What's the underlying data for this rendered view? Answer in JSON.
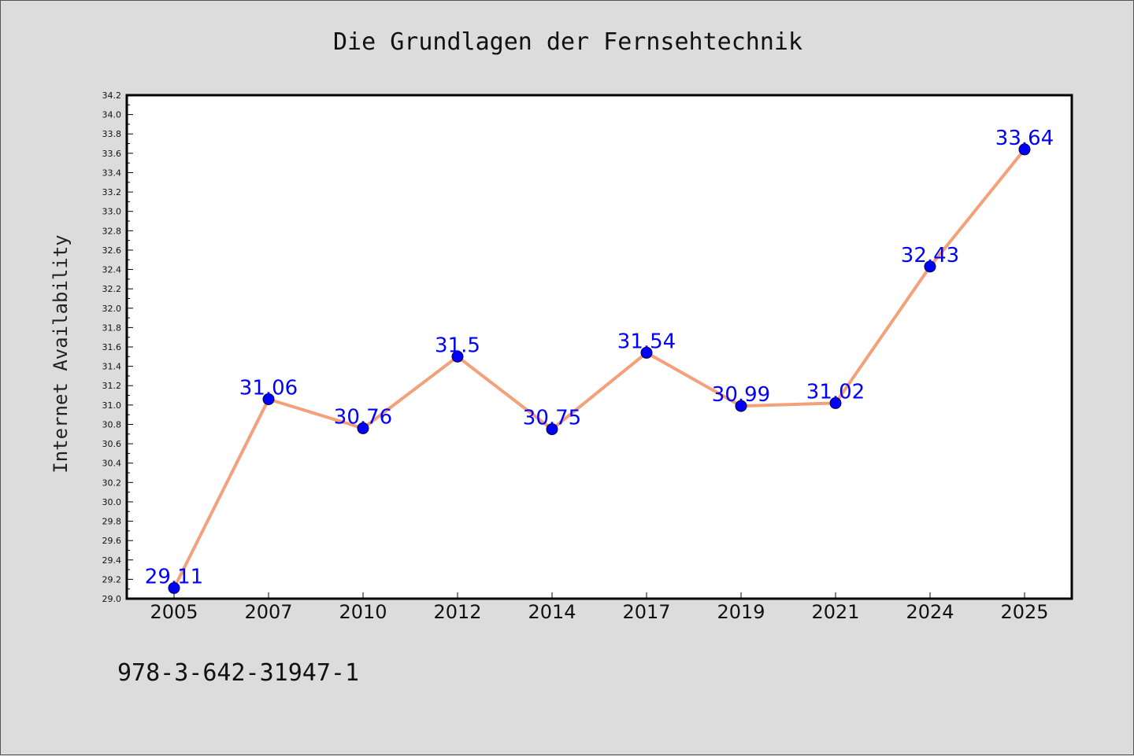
{
  "chart_data": {
    "type": "line",
    "title": "Die Grundlagen der Fernsehtechnik",
    "ylabel": "Internet Availability",
    "xlabel": "",
    "categories": [
      "2005",
      "2007",
      "2010",
      "2012",
      "2014",
      "2017",
      "2019",
      "2021",
      "2024",
      "2025"
    ],
    "series": [
      {
        "values": [
          29.11,
          31.06,
          30.76,
          31.5,
          30.75,
          31.54,
          30.99,
          31.02,
          32.43,
          33.64
        ],
        "data_labels": [
          "29.11",
          "31.06",
          "30.76",
          "31.5",
          "30.75",
          "31.54",
          "30.99",
          "31.02",
          "32.43",
          "33.64"
        ]
      }
    ],
    "ylim": [
      29.0,
      34.2
    ],
    "yticks": [
      "29.0",
      "29.2",
      "29.4",
      "29.6",
      "29.8",
      "30.0",
      "30.2",
      "30.4",
      "30.6",
      "30.8",
      "31.0",
      "31.2",
      "31.4",
      "31.6",
      "31.8",
      "32.0",
      "32.2",
      "32.4",
      "32.6",
      "32.8",
      "33.0",
      "33.2",
      "33.4",
      "33.6",
      "33.8",
      "34.0",
      "34.2"
    ],
    "grid": false,
    "legend": "none",
    "colors": {
      "line": "#f4a07a",
      "marker": "#0000ff",
      "label": "#0000ff",
      "background": "#dcdcdc",
      "plot_background": "#ffffff"
    }
  },
  "footer": {
    "isbn": "978-3-642-31947-1"
  }
}
